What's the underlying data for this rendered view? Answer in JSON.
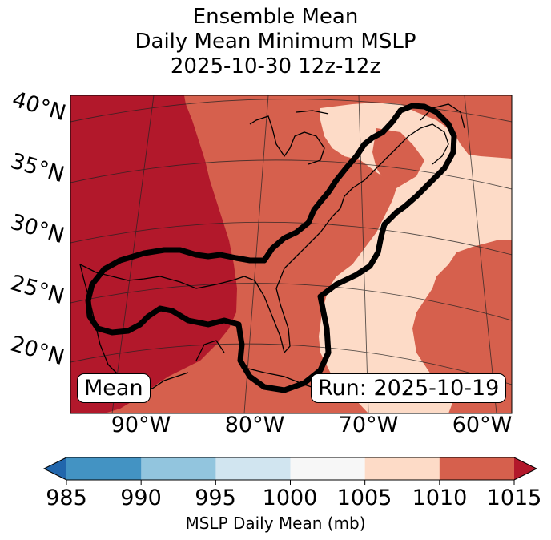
{
  "title": {
    "line1": "Ensemble Mean",
    "line2": "Daily Mean Minimum MSLP",
    "line3": "2025-10-30 12z-12z"
  },
  "map": {
    "lat_labels": [
      "40°N",
      "35°N",
      "30°N",
      "25°N",
      "20°N"
    ],
    "lon_labels": [
      "90°W",
      "80°W",
      "70°W",
      "60°W"
    ],
    "mean_label": "Mean",
    "run_label": "Run: 2025-10-19",
    "field_colors": {
      "dark_red": "#b2182b",
      "red": "#d6604d",
      "pink": "#fddbc7"
    }
  },
  "colorbar": {
    "ticks": [
      "985",
      "990",
      "995",
      "1000",
      "1005",
      "1010",
      "1015"
    ],
    "colors": [
      "#2166ac",
      "#4393c3",
      "#92c5de",
      "#d1e5f0",
      "#f7f7f7",
      "#fddbc7",
      "#d6604d",
      "#b2182b"
    ],
    "label": "MSLP Daily Mean (mb)"
  }
}
